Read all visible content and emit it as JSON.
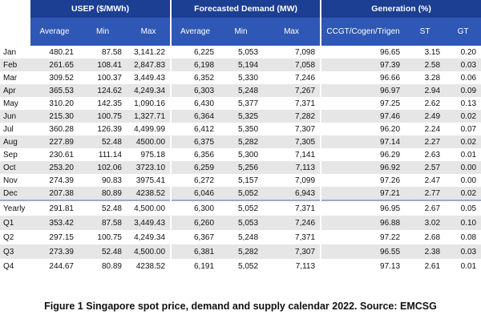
{
  "table": {
    "groups": [
      "USEP ($/MWh)",
      "Forecasted Demand (MW)",
      "Generation (%)"
    ],
    "columns": [
      "Average",
      "Min",
      "Max",
      "Average",
      "Min",
      "Max",
      "CCGT/Cogen/Trigen",
      "ST",
      "GT"
    ],
    "rows": [
      [
        "Jan",
        "480.21",
        "87.58",
        "3,141.22",
        "6,225",
        "5,053",
        "7,098",
        "96.65",
        "3.15",
        "0.20"
      ],
      [
        "Feb",
        "261.65",
        "108.41",
        "2,847.83",
        "6,198",
        "5,194",
        "7,058",
        "97.39",
        "2.58",
        "0.03"
      ],
      [
        "Mar",
        "309.52",
        "100.37",
        "3,449.43",
        "6,352",
        "5,330",
        "7,246",
        "96.66",
        "3.28",
        "0.06"
      ],
      [
        "Apr",
        "365.53",
        "124.62",
        "4,249.34",
        "6,303",
        "5,248",
        "7,267",
        "96.97",
        "2.94",
        "0.09"
      ],
      [
        "May",
        "310.20",
        "142.35",
        "1,090.16",
        "6,430",
        "5,377",
        "7,371",
        "97.25",
        "2.62",
        "0.13"
      ],
      [
        "Jun",
        "215.30",
        "100.75",
        "1,327.71",
        "6,364",
        "5,325",
        "7,282",
        "97.46",
        "2.49",
        "0.02"
      ],
      [
        "Jul",
        "360.28",
        "126.39",
        "4,499.99",
        "6,412",
        "5,350",
        "7,307",
        "96.20",
        "2.24",
        "0.07"
      ],
      [
        "Aug",
        "227.89",
        "52.48",
        "4500.00",
        "6,375",
        "5,282",
        "7,305",
        "97.14",
        "2.27",
        "0.02"
      ],
      [
        "Sep",
        "230.61",
        "111.14",
        "975.18",
        "6,356",
        "5,300",
        "7,141",
        "96.29",
        "2.63",
        "0.01"
      ],
      [
        "Oct",
        "253.20",
        "102.06",
        "3723.10",
        "6,259",
        "5,256",
        "7,113",
        "96.92",
        "2.57",
        "0.00"
      ],
      [
        "Nov",
        "274.39",
        "90.83",
        "3975.41",
        "6,272",
        "5,157",
        "7,099",
        "97.26",
        "2.47",
        "0.00"
      ],
      [
        "Dec",
        "207.38",
        "80.89",
        "4238.52",
        "6,046",
        "5,052",
        "6,943",
        "97.21",
        "2.77",
        "0.02"
      ],
      [
        "Yearly",
        "291.81",
        "52.48",
        "4,500.00",
        "6,300",
        "5,052",
        "7,371",
        "96.95",
        "2.67",
        "0.05"
      ],
      [
        "Q1",
        "353.42",
        "87.58",
        "3,449.43",
        "6,260",
        "5,053",
        "7,246",
        "96.88",
        "3.02",
        "0.10"
      ],
      [
        "Q2",
        "297.15",
        "100.75",
        "4,249.34",
        "6,367",
        "5,248",
        "7,371",
        "97.22",
        "2.68",
        "0.08"
      ],
      [
        "Q3",
        "273.39",
        "52.48",
        "4,500.00",
        "6,381",
        "5,282",
        "7,307",
        "96.55",
        "2.38",
        "0.03"
      ],
      [
        "Q4",
        "244.67",
        "80.89",
        "4238.52",
        "6,191",
        "5,052",
        "7,113",
        "97.13",
        "2.61",
        "0.01"
      ]
    ]
  },
  "caption": "Figure 1 Singapore spot price, demand and supply calendar 2022. Source: EMCSG"
}
